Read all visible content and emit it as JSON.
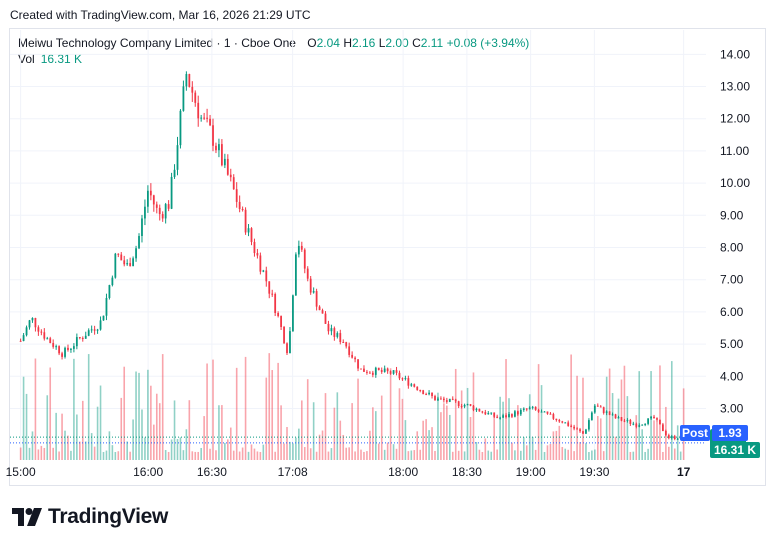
{
  "header": {
    "caption": "Created with TradingView.com, Mar 16, 2026 21:29 UTC"
  },
  "legend": {
    "symbol": "Meiwu Technology Company Limited · 1 · Cboe One",
    "open_label": "O",
    "open": "2.04",
    "high_label": "H",
    "high": "2.16",
    "low_label": "L",
    "low": "2.00",
    "close_label": "C",
    "close": "2.11",
    "change": "+0.08 (+3.94%)",
    "vol_label": "Vol",
    "vol_value": "16.31 K"
  },
  "price_tags": {
    "last": "2.11",
    "post_label": "Post",
    "post": "1.93",
    "volume": "16.31 K"
  },
  "brand": {
    "name": "TradingView"
  },
  "colors": {
    "up": "#089981",
    "down": "#f23645",
    "post": "#2962ff",
    "grid": "#f0f3fa",
    "text": "#131722"
  },
  "chart_data": {
    "type": "candlestick",
    "y_axis": {
      "ticks": [
        "14.00",
        "13.00",
        "12.00",
        "11.00",
        "10.00",
        "9.00",
        "8.00",
        "7.00",
        "6.00",
        "5.00",
        "4.00",
        "3.00"
      ],
      "range": [
        1.4,
        14.6
      ],
      "grid": true,
      "side": "right"
    },
    "x_axis": {
      "ticks": [
        "15:00",
        "16:00",
        "16:30",
        "17:08",
        "18:00",
        "18:30",
        "19:00",
        "19:30",
        "17"
      ]
    },
    "price_path": [
      [
        "15:00",
        5.1
      ],
      [
        "15:05",
        5.8
      ],
      [
        "15:12",
        5.2
      ],
      [
        "15:20",
        4.7
      ],
      [
        "15:30",
        5.3
      ],
      [
        "15:38",
        5.7
      ],
      [
        "15:45",
        7.8
      ],
      [
        "15:50",
        7.4
      ],
      [
        "15:55",
        8.1
      ],
      [
        "16:00",
        9.8
      ],
      [
        "16:05",
        9.0
      ],
      [
        "16:10",
        9.4
      ],
      [
        "16:18",
        13.4
      ],
      [
        "16:25",
        12.0
      ],
      [
        "16:30",
        11.5
      ],
      [
        "16:40",
        9.8
      ],
      [
        "16:48",
        8.3
      ],
      [
        "16:55",
        7.1
      ],
      [
        "17:00",
        6.1
      ],
      [
        "17:06",
        4.7
      ],
      [
        "17:10",
        8.4
      ],
      [
        "17:15",
        7.0
      ],
      [
        "17:25",
        5.4
      ],
      [
        "17:32",
        5.1
      ],
      [
        "17:40",
        4.2
      ],
      [
        "17:55",
        4.1
      ],
      [
        "18:08",
        3.6
      ],
      [
        "18:15",
        3.3
      ],
      [
        "18:30",
        3.1
      ],
      [
        "18:45",
        2.7
      ],
      [
        "19:00",
        3.0
      ],
      [
        "19:15",
        2.6
      ],
      [
        "19:25",
        2.2
      ],
      [
        "19:30",
        3.1
      ],
      [
        "19:40",
        2.7
      ],
      [
        "19:50",
        2.5
      ],
      [
        "19:58",
        2.7
      ],
      [
        "20:05",
        2.1
      ],
      [
        "20:12",
        2.11
      ]
    ],
    "last_close": 2.11,
    "post_price": 1.93,
    "last_volume": "16.31 K"
  }
}
